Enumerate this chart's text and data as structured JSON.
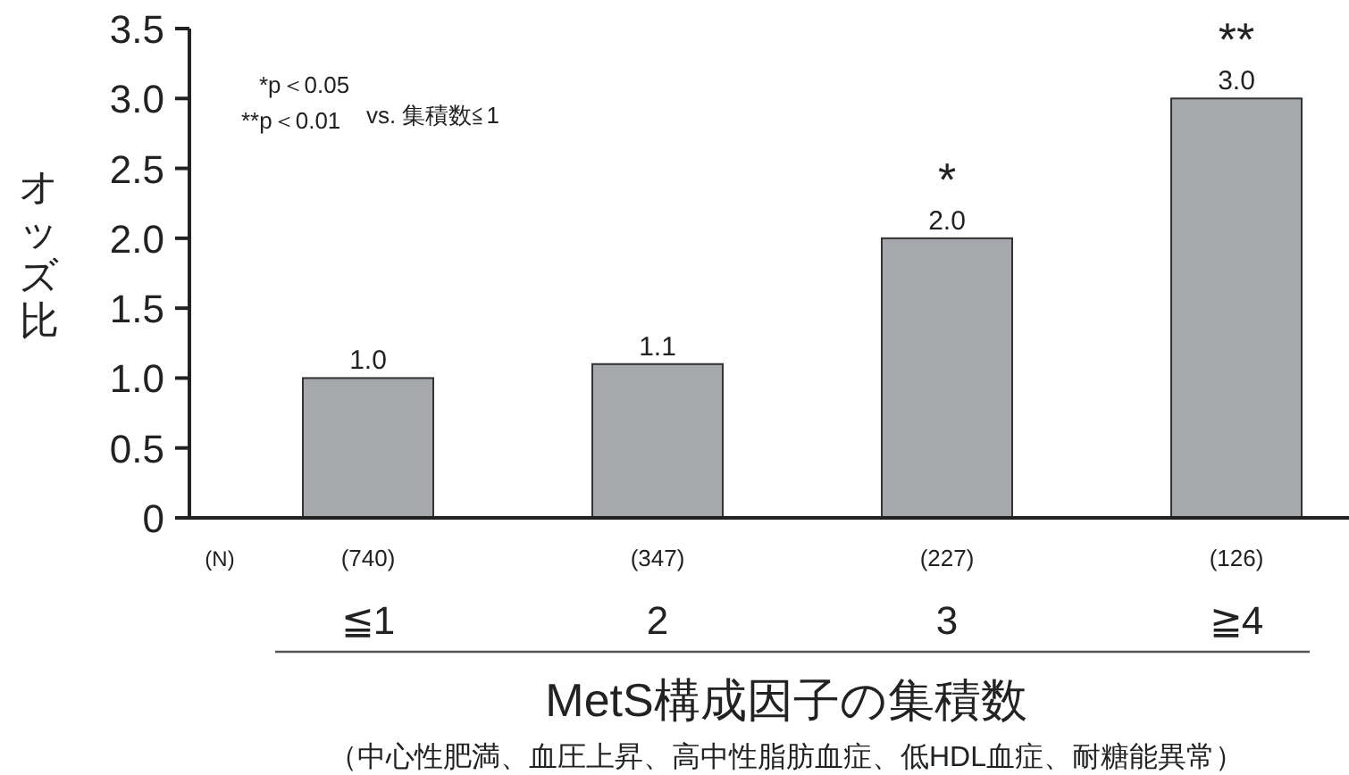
{
  "chart_data": {
    "type": "bar",
    "categories": [
      "≦1",
      "2",
      "3",
      "≧4"
    ],
    "values": [
      1.0,
      1.1,
      2.0,
      3.0
    ],
    "value_labels": [
      "1.0",
      "1.1",
      "2.0",
      "3.0"
    ],
    "color": "#a7a8ab",
    "ylim": [
      0,
      3.5
    ],
    "yticks": [
      0,
      0.5,
      {
        "value": 1,
        "label": "1.0"
      },
      1.5,
      {
        "value": 2,
        "label": "2.0"
      },
      2.5,
      {
        "value": 3,
        "label": "3.0"
      },
      3.5
    ],
    "ylabel": "オッズ比",
    "xlabel": "MetS構成因子の集積数",
    "annotations": [
      "*p＜0.05",
      "**p＜0.01",
      "vs. 集積数≦1",
      "(N)",
      "(740)",
      "(347)",
      "(227)",
      "(126)",
      {
        "text": "*",
        "x": "3",
        "y": 2.0
      },
      {
        "text": "**",
        "x": "≧4",
        "y": 3.0
      },
      "（中心性肥満、血圧上昇、高中性脂肪血症、低HDL血症、耐糖能異常）"
    ]
  }
}
